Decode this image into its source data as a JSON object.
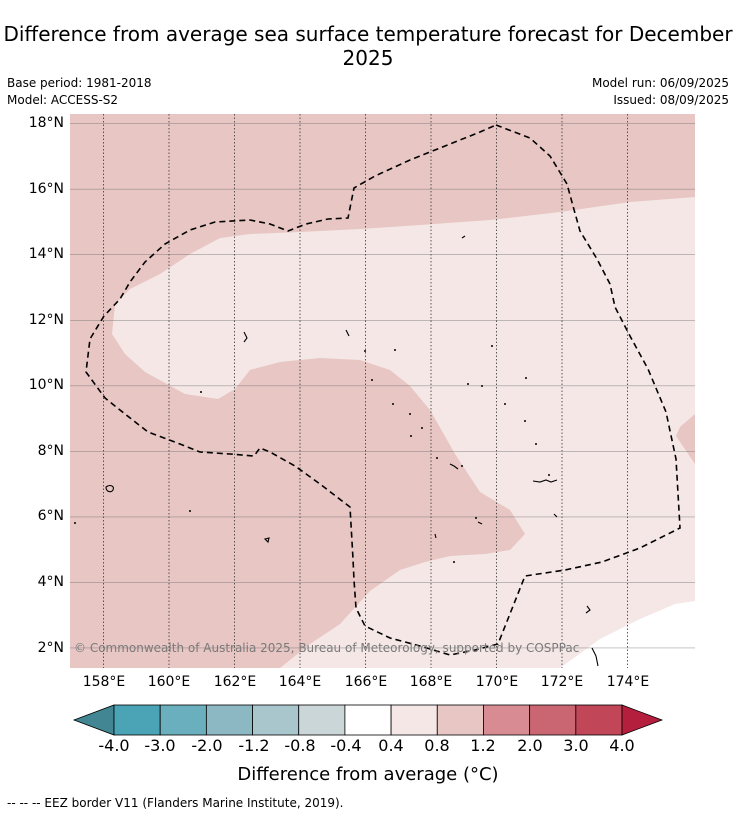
{
  "title": "Difference from average sea surface temperature forecast for December 2025",
  "base_period": "Base period: 1981-2018",
  "model": "Model: ACCESS-S2",
  "model_run": "Model run: 06/09/2025",
  "issued": "Issued: 08/09/2025",
  "map": {
    "lat_labels": [
      "18°N",
      "16°N",
      "14°N",
      "12°N",
      "10°N",
      "8°N",
      "6°N",
      "4°N",
      "2°N"
    ],
    "lon_labels": [
      "158°E",
      "160°E",
      "162°E",
      "164°E",
      "166°E",
      "168°E",
      "170°E",
      "172°E",
      "174°E"
    ],
    "copyright": "© Commonwealth of Australia 2025, Bureau of Meteorology, supported by COSPPac",
    "colors": {
      "anomaly_0.8_to_1.2": "#e7c6c3",
      "anomaly_0.4_to_0.8": "#f4e7e6",
      "anomaly_-0.4_to_0.4": "#ffffff"
    }
  },
  "colorbar": {
    "labels": [
      "-4.0",
      "-3.0",
      "-2.0",
      "-1.2",
      "-0.8",
      "-0.4",
      "0.4",
      "0.8",
      "1.2",
      "2.0",
      "3.0",
      "4.0"
    ],
    "colors": [
      "#418692",
      "#4aa4b5",
      "#6aafbe",
      "#8cb8c3",
      "#a8c6cb",
      "#cbd6d9",
      "#ffffff",
      "#f4e7e6",
      "#e7c6c3",
      "#d88b93",
      "#ca6572",
      "#c04658",
      "#b51f3e"
    ],
    "title": "Difference from average (°C)"
  },
  "footnote": "--  --  -- EEZ border V11 (Flanders Marine Institute, 2019)."
}
